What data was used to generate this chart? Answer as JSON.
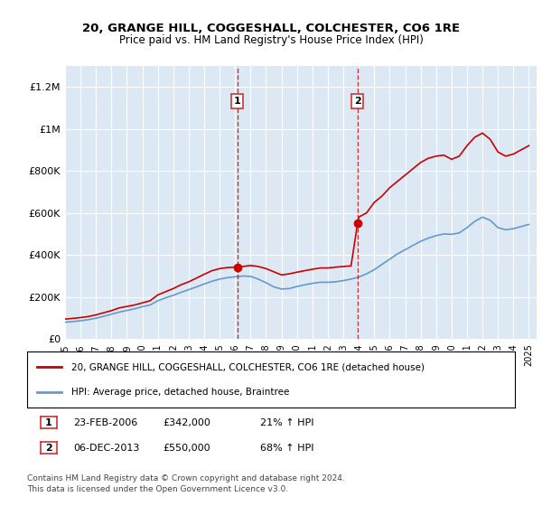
{
  "title_line1": "20, GRANGE HILL, COGGESHALL, COLCHESTER, CO6 1RE",
  "title_line2": "Price paid vs. HM Land Registry's House Price Index (HPI)",
  "ylabel_ticks": [
    "£0",
    "£200K",
    "£400K",
    "£600K",
    "£800K",
    "£1M",
    "£1.2M"
  ],
  "ytick_values": [
    0,
    200000,
    400000,
    600000,
    800000,
    1000000,
    1200000
  ],
  "ylim": [
    0,
    1300000
  ],
  "xlim_start": 1995.0,
  "xlim_end": 2025.5,
  "xticks": [
    1995,
    1996,
    1997,
    1998,
    1999,
    2000,
    2001,
    2002,
    2003,
    2004,
    2005,
    2006,
    2007,
    2008,
    2009,
    2010,
    2011,
    2012,
    2013,
    2014,
    2015,
    2016,
    2017,
    2018,
    2019,
    2020,
    2021,
    2022,
    2023,
    2024,
    2025
  ],
  "red_line_color": "#cc0000",
  "blue_line_color": "#6699cc",
  "vline_color": "#cc0000",
  "annotation_box_color": "#cc3333",
  "background_color": "#dce9f5",
  "plot_bg_color": "#dce9f5",
  "grid_color": "#ffffff",
  "legend_box_color": "#ffffff",
  "marker1_x": 2006.15,
  "marker1_y": 342000,
  "marker2_x": 2013.92,
  "marker2_y": 550000,
  "vline1_x": 2006.15,
  "vline2_x": 2013.92,
  "label1_text": "1",
  "label2_text": "2",
  "sale1_date": "23-FEB-2006",
  "sale1_price": "£342,000",
  "sale1_hpi": "21% ↑ HPI",
  "sale2_date": "06-DEC-2013",
  "sale2_price": "£550,000",
  "sale2_hpi": "68% ↑ HPI",
  "legend_line1": "20, GRANGE HILL, COGGESHALL, COLCHESTER, CO6 1RE (detached house)",
  "legend_line2": "HPI: Average price, detached house, Braintree",
  "footer_line1": "Contains HM Land Registry data © Crown copyright and database right 2024.",
  "footer_line2": "This data is licensed under the Open Government Licence v3.0.",
  "red_x": [
    1995.0,
    1995.5,
    1996.0,
    1996.5,
    1997.0,
    1997.5,
    1998.0,
    1998.5,
    1999.0,
    1999.5,
    2000.0,
    2000.5,
    2001.0,
    2001.5,
    2002.0,
    2002.5,
    2003.0,
    2003.5,
    2004.0,
    2004.5,
    2005.0,
    2005.5,
    2006.0,
    2006.15,
    2006.5,
    2007.0,
    2007.5,
    2008.0,
    2008.5,
    2009.0,
    2009.5,
    2010.0,
    2010.5,
    2011.0,
    2011.5,
    2012.0,
    2012.5,
    2013.0,
    2013.5,
    2013.92,
    2014.0,
    2014.5,
    2015.0,
    2015.5,
    2016.0,
    2016.5,
    2017.0,
    2017.5,
    2018.0,
    2018.5,
    2019.0,
    2019.5,
    2020.0,
    2020.5,
    2021.0,
    2021.5,
    2022.0,
    2022.5,
    2023.0,
    2023.5,
    2024.0,
    2024.5,
    2025.0
  ],
  "red_y": [
    95000,
    98000,
    102000,
    107000,
    115000,
    125000,
    135000,
    148000,
    155000,
    162000,
    172000,
    182000,
    210000,
    225000,
    240000,
    258000,
    272000,
    290000,
    308000,
    325000,
    335000,
    340000,
    342000,
    342000,
    345000,
    350000,
    345000,
    335000,
    320000,
    305000,
    310000,
    318000,
    325000,
    332000,
    338000,
    338000,
    342000,
    345000,
    348000,
    550000,
    580000,
    600000,
    650000,
    680000,
    720000,
    750000,
    780000,
    810000,
    840000,
    860000,
    870000,
    875000,
    855000,
    870000,
    920000,
    960000,
    980000,
    950000,
    890000,
    870000,
    880000,
    900000,
    920000
  ],
  "blue_x": [
    1995.0,
    1995.5,
    1996.0,
    1996.5,
    1997.0,
    1997.5,
    1998.0,
    1998.5,
    1999.0,
    1999.5,
    2000.0,
    2000.5,
    2001.0,
    2001.5,
    2002.0,
    2002.5,
    2003.0,
    2003.5,
    2004.0,
    2004.5,
    2005.0,
    2005.5,
    2006.0,
    2006.5,
    2007.0,
    2007.5,
    2008.0,
    2008.5,
    2009.0,
    2009.5,
    2010.0,
    2010.5,
    2011.0,
    2011.5,
    2012.0,
    2012.5,
    2013.0,
    2013.5,
    2014.0,
    2014.5,
    2015.0,
    2015.5,
    2016.0,
    2016.5,
    2017.0,
    2017.5,
    2018.0,
    2018.5,
    2019.0,
    2019.5,
    2020.0,
    2020.5,
    2021.0,
    2021.5,
    2022.0,
    2022.5,
    2023.0,
    2023.5,
    2024.0,
    2024.5,
    2025.0
  ],
  "blue_y": [
    80000,
    83000,
    87000,
    92000,
    99000,
    108000,
    118000,
    128000,
    136000,
    144000,
    154000,
    162000,
    182000,
    196000,
    208000,
    222000,
    235000,
    248000,
    262000,
    275000,
    285000,
    292000,
    296000,
    300000,
    298000,
    285000,
    268000,
    248000,
    238000,
    240000,
    250000,
    258000,
    265000,
    270000,
    270000,
    272000,
    278000,
    285000,
    295000,
    310000,
    330000,
    355000,
    380000,
    405000,
    425000,
    445000,
    465000,
    480000,
    492000,
    500000,
    498000,
    505000,
    530000,
    560000,
    580000,
    565000,
    530000,
    520000,
    525000,
    535000,
    545000
  ]
}
